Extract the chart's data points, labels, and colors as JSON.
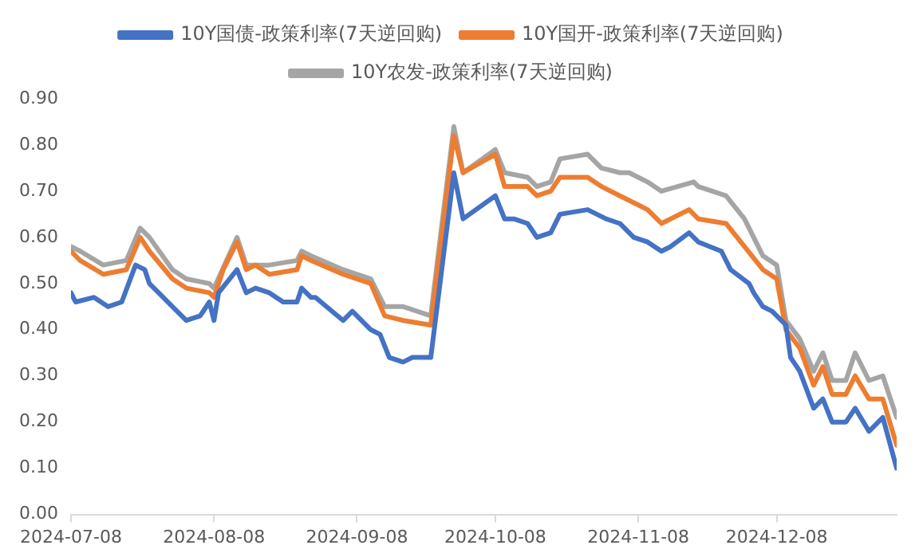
{
  "chart_data": {
    "type": "line",
    "xlim": [
      "2024-07-08",
      "2025-01-03"
    ],
    "xticks": [
      "2024-07-08",
      "2024-08-08",
      "2024-09-08",
      "2024-10-08",
      "2024-11-08",
      "2024-12-08"
    ],
    "ylim": [
      0,
      0.9
    ],
    "yticks": [
      {
        "value": 0,
        "label": "0.00"
      },
      {
        "value": 0.1,
        "label": "0.10"
      },
      {
        "value": 0.2,
        "label": "0.20"
      },
      {
        "value": 0.3,
        "label": "0.30"
      },
      {
        "value": 0.4,
        "label": "0.40"
      },
      {
        "value": 0.5,
        "label": "0.50"
      },
      {
        "value": 0.6,
        "label": "0.60"
      },
      {
        "value": 0.7,
        "label": "0.70"
      },
      {
        "value": 0.8,
        "label": "0.80"
      },
      {
        "value": 0.9,
        "label": "0.90"
      }
    ],
    "grid": false,
    "legend": "top",
    "marker": "none",
    "line_style": "solid",
    "series": [
      {
        "name": "10Y国债-政策利率(7天逆回购)",
        "color": "#4472c4",
        "x": [
          "2024-07-08",
          "2024-07-09",
          "2024-07-13",
          "2024-07-16",
          "2024-07-19",
          "2024-07-22",
          "2024-07-24",
          "2024-07-25",
          "2024-07-27",
          "2024-07-30",
          "2024-08-02",
          "2024-08-05",
          "2024-08-07",
          "2024-08-08",
          "2024-08-09",
          "2024-08-13",
          "2024-08-15",
          "2024-08-17",
          "2024-08-20",
          "2024-08-23",
          "2024-08-26",
          "2024-08-27",
          "2024-08-29",
          "2024-08-30",
          "2024-09-05",
          "2024-09-07",
          "2024-09-11",
          "2024-09-13",
          "2024-09-15",
          "2024-09-18",
          "2024-09-20",
          "2024-09-24",
          "2024-09-29",
          "2024-10-01",
          "2024-10-08",
          "2024-10-10",
          "2024-10-12",
          "2024-10-15",
          "2024-10-17",
          "2024-10-20",
          "2024-10-22",
          "2024-10-28",
          "2024-11-01",
          "2024-11-04",
          "2024-11-07",
          "2024-11-10",
          "2024-11-13",
          "2024-11-15",
          "2024-11-19",
          "2024-11-21",
          "2024-11-26",
          "2024-11-28",
          "2024-12-02",
          "2024-12-03",
          "2024-12-05",
          "2024-12-07",
          "2024-12-10",
          "2024-12-11",
          "2024-12-13",
          "2024-12-16",
          "2024-12-18",
          "2024-12-20",
          "2024-12-23",
          "2024-12-25",
          "2024-12-28",
          "2024-12-31",
          "2025-01-03"
        ],
        "values": [
          0.48,
          0.46,
          0.47,
          0.45,
          0.46,
          0.54,
          0.53,
          0.5,
          0.48,
          0.45,
          0.42,
          0.43,
          0.46,
          0.42,
          0.48,
          0.53,
          0.48,
          0.49,
          0.48,
          0.46,
          0.46,
          0.49,
          0.47,
          0.47,
          0.42,
          0.44,
          0.4,
          0.39,
          0.34,
          0.33,
          0.34,
          0.34,
          0.74,
          0.64,
          0.69,
          0.64,
          0.64,
          0.63,
          0.6,
          0.61,
          0.65,
          0.66,
          0.64,
          0.63,
          0.6,
          0.59,
          0.57,
          0.58,
          0.61,
          0.59,
          0.57,
          0.53,
          0.5,
          0.48,
          0.45,
          0.44,
          0.41,
          0.34,
          0.31,
          0.23,
          0.25,
          0.2,
          0.2,
          0.23,
          0.18,
          0.21,
          0.1
        ]
      },
      {
        "name": "10Y国开-政策利率(7天逆回购)",
        "color": "#ed7d31",
        "x": [
          "2024-07-08",
          "2024-07-10",
          "2024-07-15",
          "2024-07-20",
          "2024-07-23",
          "2024-07-25",
          "2024-07-30",
          "2024-08-02",
          "2024-08-07",
          "2024-08-08",
          "2024-08-10",
          "2024-08-13",
          "2024-08-15",
          "2024-08-17",
          "2024-08-20",
          "2024-08-26",
          "2024-08-27",
          "2024-08-29",
          "2024-09-05",
          "2024-09-11",
          "2024-09-14",
          "2024-09-18",
          "2024-09-24",
          "2024-09-29",
          "2024-10-01",
          "2024-10-08",
          "2024-10-10",
          "2024-10-15",
          "2024-10-17",
          "2024-10-20",
          "2024-10-22",
          "2024-10-28",
          "2024-10-31",
          "2024-11-04",
          "2024-11-06",
          "2024-11-10",
          "2024-11-13",
          "2024-11-19",
          "2024-11-21",
          "2024-11-27",
          "2024-12-01",
          "2024-12-05",
          "2024-12-08",
          "2024-12-10",
          "2024-12-13",
          "2024-12-16",
          "2024-12-18",
          "2024-12-20",
          "2024-12-23",
          "2024-12-25",
          "2024-12-28",
          "2024-12-31",
          "2025-01-03"
        ],
        "values": [
          0.57,
          0.55,
          0.52,
          0.53,
          0.6,
          0.57,
          0.51,
          0.49,
          0.48,
          0.47,
          0.53,
          0.59,
          0.53,
          0.54,
          0.52,
          0.53,
          0.56,
          0.55,
          0.52,
          0.5,
          0.43,
          0.42,
          0.41,
          0.82,
          0.74,
          0.78,
          0.71,
          0.71,
          0.69,
          0.7,
          0.73,
          0.73,
          0.71,
          0.69,
          0.68,
          0.66,
          0.63,
          0.66,
          0.64,
          0.63,
          0.58,
          0.53,
          0.51,
          0.4,
          0.36,
          0.28,
          0.32,
          0.26,
          0.26,
          0.3,
          0.25,
          0.25,
          0.15
        ]
      },
      {
        "name": "10Y农发-政策利率(7天逆回购)",
        "color": "#a5a5a5",
        "x": [
          "2024-07-08",
          "2024-07-10",
          "2024-07-15",
          "2024-07-20",
          "2024-07-23",
          "2024-07-25",
          "2024-07-30",
          "2024-08-02",
          "2024-08-07",
          "2024-08-08",
          "2024-08-13",
          "2024-08-15",
          "2024-08-20",
          "2024-08-26",
          "2024-08-27",
          "2024-08-29",
          "2024-09-05",
          "2024-09-11",
          "2024-09-14",
          "2024-09-18",
          "2024-09-24",
          "2024-09-29",
          "2024-10-01",
          "2024-10-08",
          "2024-10-10",
          "2024-10-15",
          "2024-10-17",
          "2024-10-20",
          "2024-10-22",
          "2024-10-28",
          "2024-10-31",
          "2024-11-04",
          "2024-11-06",
          "2024-11-10",
          "2024-11-13",
          "2024-11-20",
          "2024-11-21",
          "2024-11-27",
          "2024-12-01",
          "2024-12-05",
          "2024-12-08",
          "2024-12-10",
          "2024-12-13",
          "2024-12-16",
          "2024-12-18",
          "2024-12-20",
          "2024-12-23",
          "2024-12-25",
          "2024-12-28",
          "2024-12-31",
          "2025-01-03"
        ],
        "values": [
          0.58,
          0.57,
          0.54,
          0.55,
          0.62,
          0.6,
          0.53,
          0.51,
          0.5,
          0.49,
          0.6,
          0.54,
          0.54,
          0.55,
          0.57,
          0.56,
          0.53,
          0.51,
          0.45,
          0.45,
          0.43,
          0.84,
          0.74,
          0.79,
          0.74,
          0.73,
          0.71,
          0.72,
          0.77,
          0.78,
          0.75,
          0.74,
          0.74,
          0.72,
          0.7,
          0.72,
          0.71,
          0.69,
          0.64,
          0.56,
          0.54,
          0.42,
          0.38,
          0.31,
          0.35,
          0.29,
          0.29,
          0.35,
          0.29,
          0.3,
          0.21
        ]
      }
    ]
  }
}
